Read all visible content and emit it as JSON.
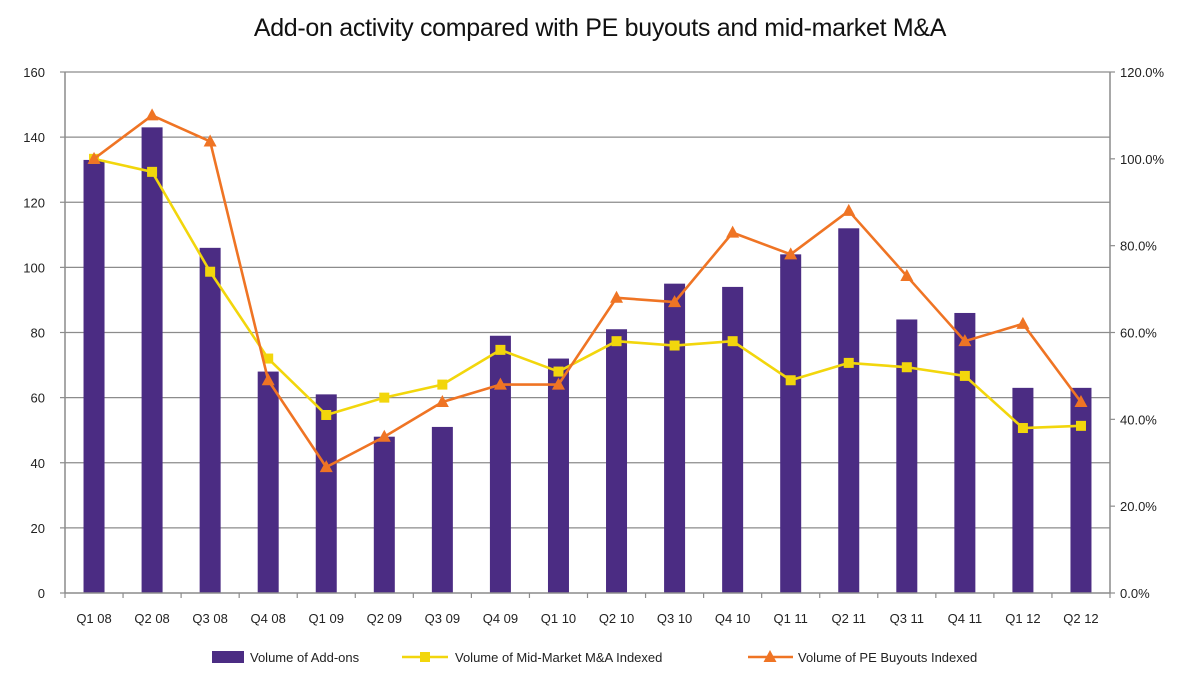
{
  "chart_data": {
    "type": "bar",
    "title": "Add-on activity compared with PE buyouts and mid-market M&A",
    "categories": [
      "Q1 08",
      "Q2 08",
      "Q3 08",
      "Q4 08",
      "Q1 09",
      "Q2 09",
      "Q3 09",
      "Q4 09",
      "Q1 10",
      "Q2 10",
      "Q3 10",
      "Q4 10",
      "Q1 11",
      "Q2 11",
      "Q3 11",
      "Q4 11",
      "Q1 12",
      "Q2 12"
    ],
    "left_axis": {
      "ylim": [
        0,
        160
      ],
      "ticks": [
        "0",
        "20",
        "40",
        "60",
        "80",
        "100",
        "120",
        "140",
        "160"
      ],
      "tick_values": [
        0,
        20,
        40,
        60,
        80,
        100,
        120,
        140,
        160
      ]
    },
    "right_axis": {
      "ylim": [
        0,
        120
      ],
      "ticks": [
        "0.0%",
        "20.0%",
        "40.0%",
        "60.0%",
        "80.0%",
        "100.0%",
        "120.0%"
      ],
      "tick_values": [
        0,
        20,
        40,
        60,
        80,
        100,
        120
      ]
    },
    "grid": true,
    "legend_position": "bottom",
    "series": [
      {
        "name": "Volume of Add-ons",
        "type": "bar",
        "axis": "left",
        "color": "#4b2c83",
        "values": [
          133,
          143,
          106,
          68,
          61,
          48,
          51,
          79,
          72,
          81,
          95,
          94,
          104,
          112,
          84,
          86,
          63,
          63
        ]
      },
      {
        "name": "Volume of Mid-Market M&A Indexed",
        "type": "line",
        "marker": "square",
        "axis": "right",
        "color": "#f2d60c",
        "values": [
          100,
          97,
          74,
          54,
          41,
          45,
          48,
          56,
          51,
          58,
          57,
          58,
          49,
          53,
          52,
          50,
          38,
          38.5
        ]
      },
      {
        "name": "Volume of PE Buyouts Indexed",
        "type": "line",
        "marker": "triangle",
        "axis": "right",
        "color": "#ef7424",
        "values": [
          100,
          110,
          104,
          49,
          29,
          36,
          44,
          48,
          48,
          68,
          67,
          83,
          78,
          88,
          73,
          58,
          62,
          44
        ]
      }
    ]
  }
}
